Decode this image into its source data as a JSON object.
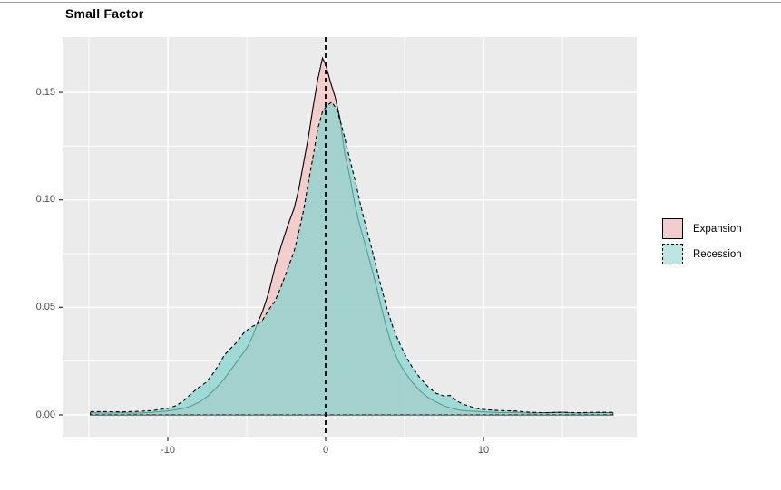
{
  "page": {
    "top_border_color": "#9a9a9a",
    "background": "#ffffff"
  },
  "chart_data": {
    "type": "area",
    "subtype": "density",
    "title": "Small Factor",
    "panel_bg": "#ebebeb",
    "grid_color": "#ffffff",
    "axis_text_color": "#4d4d4d",
    "tick_mark_color": "#333333",
    "x_axis": {
      "tick_labels": [
        "-10",
        "0",
        "10"
      ],
      "tick_values": [
        -10,
        0,
        10
      ],
      "minor_values": [
        -15,
        -5,
        5,
        15
      ],
      "range": [
        -16.7,
        19.7
      ]
    },
    "y_axis": {
      "tick_labels": [
        "0.00",
        "0.05",
        "0.10",
        "0.15"
      ],
      "tick_values": [
        0,
        0.05,
        0.1,
        0.15
      ],
      "minor_values": [
        0.025,
        0.075,
        0.125
      ],
      "range": [
        -0.0105,
        0.176
      ]
    },
    "vline": {
      "x": 0,
      "color": "#000000",
      "style": "dashed"
    },
    "series": [
      {
        "name": "Expansion",
        "line_style": "solid",
        "stroke": "#000000",
        "fill": "#f9baba",
        "fill_opacity": 0.62,
        "points": [
          [
            -14.9,
            0.001
          ],
          [
            -14,
            0.0008
          ],
          [
            -13,
            0.001
          ],
          [
            -12,
            0.0008
          ],
          [
            -11,
            0.0012
          ],
          [
            -10,
            0.0018
          ],
          [
            -9,
            0.003
          ],
          [
            -8.5,
            0.0042
          ],
          [
            -8,
            0.006
          ],
          [
            -7.5,
            0.0085
          ],
          [
            -7,
            0.012
          ],
          [
            -6.5,
            0.016
          ],
          [
            -6,
            0.021
          ],
          [
            -5.5,
            0.026
          ],
          [
            -5,
            0.031
          ],
          [
            -4.6,
            0.037
          ],
          [
            -4.3,
            0.043
          ],
          [
            -4,
            0.048
          ],
          [
            -3.6,
            0.057
          ],
          [
            -3.2,
            0.069
          ],
          [
            -2.8,
            0.079
          ],
          [
            -2.4,
            0.088
          ],
          [
            -2,
            0.096
          ],
          [
            -1.7,
            0.105
          ],
          [
            -1.4,
            0.117
          ],
          [
            -1.1,
            0.129
          ],
          [
            -0.8,
            0.143
          ],
          [
            -0.5,
            0.156
          ],
          [
            -0.2,
            0.166
          ],
          [
            0,
            0.163
          ],
          [
            0.3,
            0.155
          ],
          [
            0.6,
            0.148
          ],
          [
            0.9,
            0.138
          ],
          [
            1.2,
            0.122
          ],
          [
            1.5,
            0.112
          ],
          [
            1.8,
            0.1
          ],
          [
            2.1,
            0.09
          ],
          [
            2.4,
            0.082
          ],
          [
            2.7,
            0.074
          ],
          [
            3,
            0.066
          ],
          [
            3.4,
            0.054
          ],
          [
            3.8,
            0.042
          ],
          [
            4.2,
            0.032
          ],
          [
            4.6,
            0.025
          ],
          [
            5,
            0.02
          ],
          [
            5.5,
            0.015
          ],
          [
            6,
            0.011
          ],
          [
            6.5,
            0.008
          ],
          [
            7,
            0.006
          ],
          [
            7.5,
            0.0042
          ],
          [
            8,
            0.003
          ],
          [
            8.5,
            0.0022
          ],
          [
            9,
            0.0018
          ],
          [
            10,
            0.0014
          ],
          [
            11,
            0.001
          ],
          [
            12,
            0.0012
          ],
          [
            13,
            0.0008
          ],
          [
            14,
            0.001
          ],
          [
            15,
            0.0012
          ],
          [
            16,
            0.0008
          ],
          [
            17,
            0.001
          ],
          [
            18,
            0.001
          ],
          [
            18.2,
            0.001
          ]
        ]
      },
      {
        "name": "Recession",
        "line_style": "dashed",
        "stroke": "#000000",
        "fill": "#82d2ce",
        "fill_opacity": 0.72,
        "points": [
          [
            -14.9,
            0.0015
          ],
          [
            -14,
            0.0015
          ],
          [
            -13,
            0.0014
          ],
          [
            -12,
            0.0016
          ],
          [
            -11,
            0.002
          ],
          [
            -10,
            0.003
          ],
          [
            -9.5,
            0.0042
          ],
          [
            -9,
            0.0065
          ],
          [
            -8.5,
            0.01
          ],
          [
            -8,
            0.013
          ],
          [
            -7.6,
            0.015
          ],
          [
            -7.2,
            0.0185
          ],
          [
            -6.8,
            0.023
          ],
          [
            -6.4,
            0.028
          ],
          [
            -6,
            0.031
          ],
          [
            -5.6,
            0.034
          ],
          [
            -5.2,
            0.038
          ],
          [
            -4.8,
            0.0405
          ],
          [
            -4.4,
            0.042
          ],
          [
            -4,
            0.044
          ],
          [
            -3.6,
            0.049
          ],
          [
            -3.2,
            0.053
          ],
          [
            -2.8,
            0.06
          ],
          [
            -2.4,
            0.068
          ],
          [
            -2,
            0.076
          ],
          [
            -1.7,
            0.085
          ],
          [
            -1.4,
            0.095
          ],
          [
            -1.1,
            0.108
          ],
          [
            -0.8,
            0.12
          ],
          [
            -0.5,
            0.133
          ],
          [
            -0.2,
            0.141
          ],
          [
            0.1,
            0.144
          ],
          [
            0.4,
            0.1455
          ],
          [
            0.7,
            0.142
          ],
          [
            1,
            0.135
          ],
          [
            1.3,
            0.126
          ],
          [
            1.6,
            0.117
          ],
          [
            1.9,
            0.108
          ],
          [
            2.2,
            0.098
          ],
          [
            2.5,
            0.089
          ],
          [
            2.8,
            0.081
          ],
          [
            3.1,
            0.072
          ],
          [
            3.5,
            0.06
          ],
          [
            3.9,
            0.049
          ],
          [
            4.3,
            0.04
          ],
          [
            4.7,
            0.033
          ],
          [
            5.1,
            0.027
          ],
          [
            5.5,
            0.022
          ],
          [
            6,
            0.017
          ],
          [
            6.5,
            0.013
          ],
          [
            7,
            0.01
          ],
          [
            7.5,
            0.0088
          ],
          [
            7.9,
            0.009
          ],
          [
            8.3,
            0.0065
          ],
          [
            8.7,
            0.005
          ],
          [
            9.2,
            0.0038
          ],
          [
            9.7,
            0.0028
          ],
          [
            10.2,
            0.0024
          ],
          [
            11,
            0.002
          ],
          [
            12,
            0.0018
          ],
          [
            13,
            0.0012
          ],
          [
            14,
            0.001
          ],
          [
            15,
            0.0012
          ],
          [
            16,
            0.001
          ],
          [
            17,
            0.0012
          ],
          [
            18,
            0.0012
          ],
          [
            18.2,
            0.0012
          ]
        ]
      }
    ],
    "legend": {
      "position": "right",
      "entries": [
        {
          "label": "Expansion",
          "swatch_fill": "#f3cdcd",
          "swatch_border": "solid"
        },
        {
          "label": "Recession",
          "swatch_fill": "#bde6e3",
          "swatch_border": "dashed"
        }
      ]
    }
  }
}
